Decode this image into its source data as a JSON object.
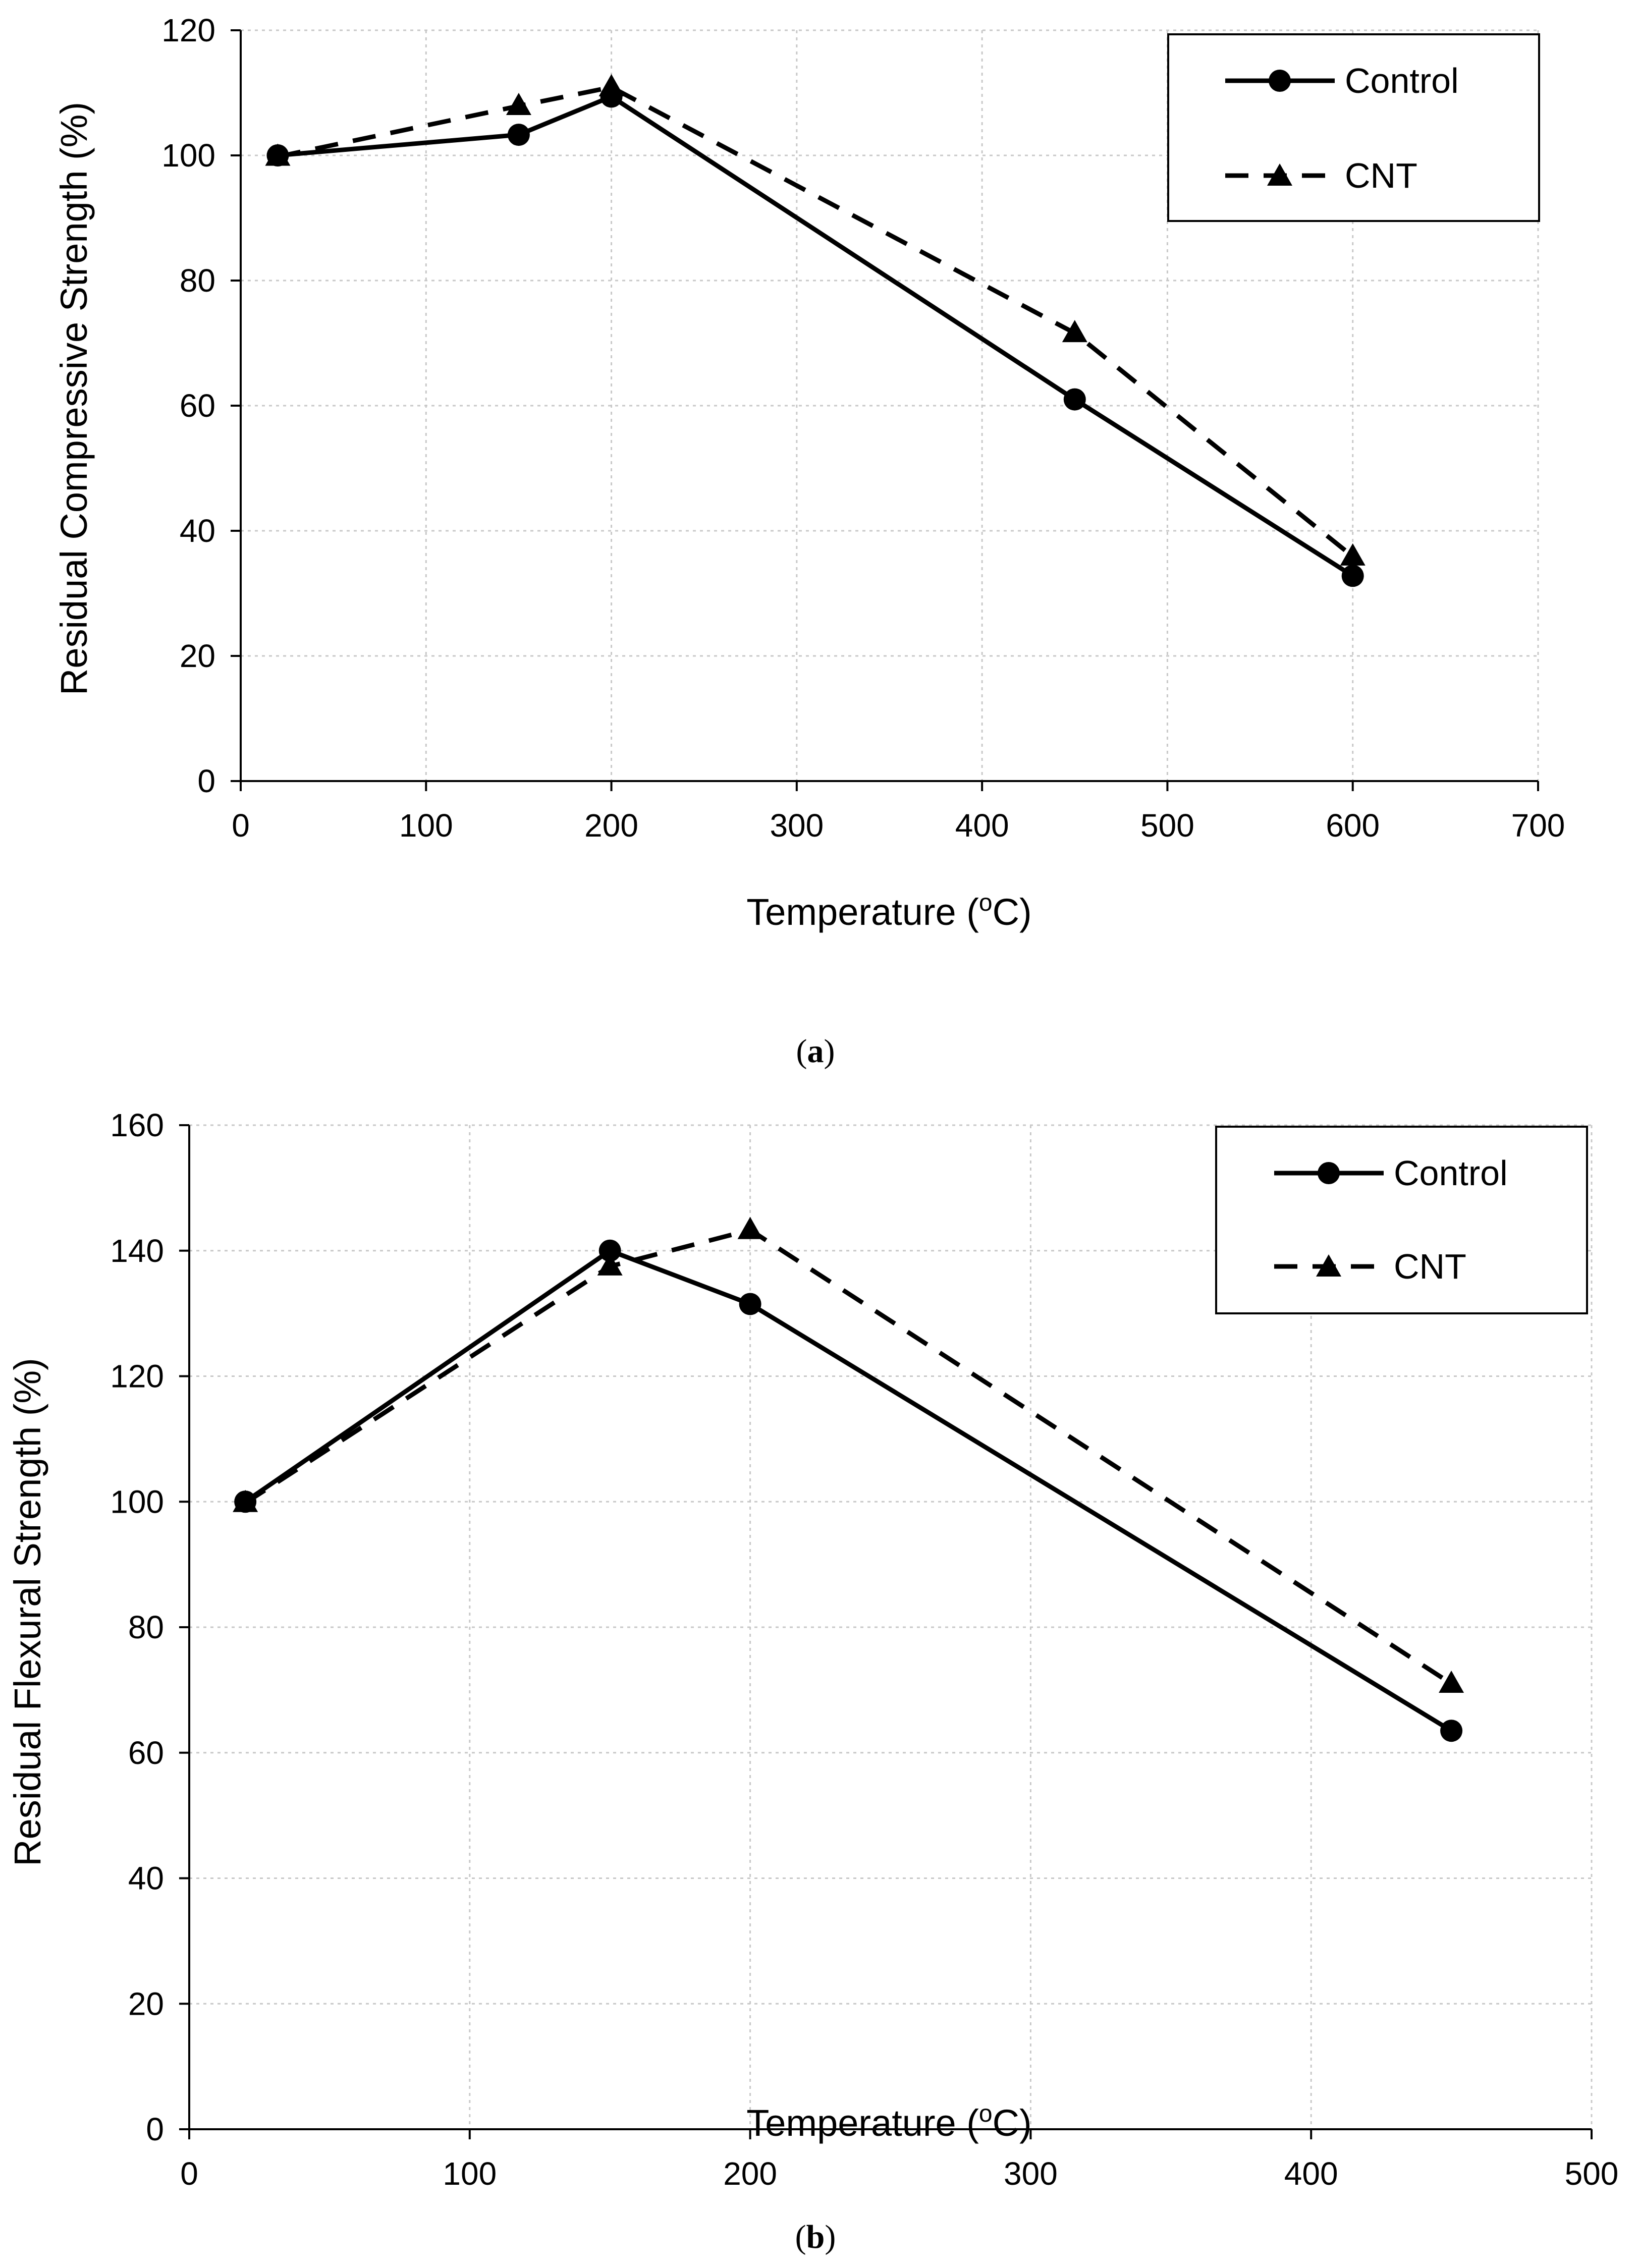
{
  "chart_data": [
    {
      "type": "line",
      "caption": "a",
      "xlabel": "Temperature (",
      "xlabel_sup": "o",
      "xlabel_suffix": "C)",
      "ylabel": "Residual Compressive Strength (%)",
      "xlim": [
        0,
        700
      ],
      "ylim": [
        0,
        120
      ],
      "xticks": [
        0,
        100,
        200,
        300,
        400,
        500,
        600,
        700
      ],
      "yticks": [
        0,
        20,
        40,
        60,
        80,
        100,
        120
      ],
      "grid": true,
      "legend_position": "top-right",
      "series": [
        {
          "name": "Control",
          "marker": "circle",
          "dash": "solid",
          "x": [
            20,
            150,
            200,
            450,
            600
          ],
          "y": [
            100,
            103.3,
            109.4,
            61,
            32.8
          ]
        },
        {
          "name": "CNT",
          "marker": "triangle",
          "dash": "dashed",
          "x": [
            20,
            150,
            200,
            450,
            600
          ],
          "y": [
            99.8,
            107.9,
            110.9,
            71.6,
            35.9
          ]
        }
      ]
    },
    {
      "type": "line",
      "caption": "b",
      "xlabel": "Temperature (",
      "xlabel_sup": "o",
      "xlabel_suffix": "C)",
      "ylabel": "Residual Flexural Strength (%)",
      "xlim": [
        0,
        500
      ],
      "ylim": [
        0,
        160
      ],
      "xticks": [
        0,
        100,
        200,
        300,
        400,
        500
      ],
      "yticks": [
        0,
        20,
        40,
        60,
        80,
        100,
        120,
        140,
        160
      ],
      "grid": true,
      "legend_position": "top-right",
      "series": [
        {
          "name": "Control",
          "marker": "circle",
          "dash": "solid",
          "x": [
            20,
            150,
            200,
            450
          ],
          "y": [
            100,
            140,
            131.5,
            63.5
          ]
        },
        {
          "name": "CNT",
          "marker": "triangle",
          "dash": "dashed",
          "x": [
            20,
            150,
            200,
            450
          ],
          "y": [
            99.8,
            137.5,
            143.3,
            71
          ]
        }
      ]
    }
  ]
}
